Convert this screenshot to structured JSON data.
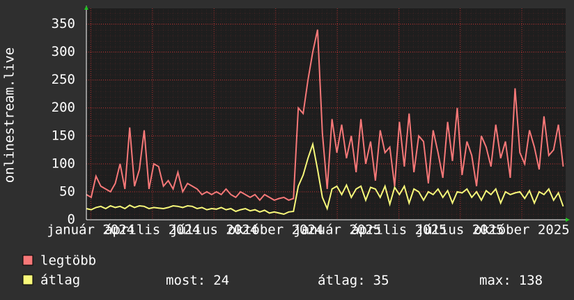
{
  "chart_data": {
    "type": "line",
    "y_label": "onlinestream.live",
    "ylim": [
      0,
      378
    ],
    "yticks": [
      0,
      50,
      100,
      150,
      200,
      250,
      300,
      350
    ],
    "xlim": [
      0,
      99.5
    ],
    "xticks": [
      {
        "value": 0.9,
        "label": "január 2024"
      },
      {
        "value": 13.7,
        "label": "április 2024"
      },
      {
        "value": 26.5,
        "label": "július 2024"
      },
      {
        "value": 39.3,
        "label": "október 2024"
      },
      {
        "value": 52.1,
        "label": "január 2025"
      },
      {
        "value": 64.9,
        "label": "április 2025"
      },
      {
        "value": 77.6,
        "label": "július 2025"
      },
      {
        "value": 90.4,
        "label": "október 2025"
      }
    ],
    "grid": true,
    "series": [
      {
        "name": "legtöbb",
        "color": "#f77878",
        "values": [
          45,
          40,
          78,
          60,
          55,
          50,
          65,
          100,
          55,
          165,
          60,
          90,
          160,
          55,
          100,
          95,
          60,
          70,
          55,
          85,
          50,
          65,
          60,
          55,
          45,
          50,
          45,
          50,
          45,
          55,
          45,
          40,
          50,
          45,
          40,
          45,
          35,
          45,
          40,
          35,
          38,
          40,
          35,
          38,
          200,
          190,
          250,
          300,
          340,
          155,
          55,
          180,
          120,
          170,
          110,
          150,
          85,
          180,
          100,
          140,
          70,
          160,
          120,
          130,
          60,
          175,
          95,
          190,
          85,
          150,
          140,
          65,
          160,
          120,
          75,
          175,
          105,
          200,
          80,
          140,
          115,
          60,
          150,
          130,
          95,
          170,
          110,
          140,
          75,
          235,
          120,
          100,
          160,
          130,
          90,
          185,
          115,
          125,
          170,
          95
        ]
      },
      {
        "name": "átlag",
        "color": "#f8f87a",
        "values": [
          20,
          18,
          22,
          24,
          20,
          25,
          22,
          24,
          20,
          26,
          22,
          25,
          24,
          20,
          22,
          21,
          20,
          22,
          25,
          24,
          22,
          25,
          24,
          20,
          22,
          18,
          20,
          19,
          22,
          18,
          20,
          15,
          18,
          20,
          16,
          18,
          14,
          17,
          12,
          14,
          12,
          10,
          14,
          15,
          60,
          80,
          110,
          135,
          90,
          40,
          20,
          55,
          60,
          45,
          62,
          40,
          55,
          60,
          35,
          58,
          55,
          40,
          60,
          28,
          58,
          45,
          60,
          30,
          55,
          50,
          35,
          50,
          45,
          55,
          40,
          52,
          30,
          50,
          48,
          55,
          40,
          50,
          35,
          52,
          45,
          55,
          30,
          50,
          45,
          48,
          50,
          38,
          52,
          30,
          50,
          45,
          55,
          35,
          48,
          24
        ]
      }
    ],
    "stats": [
      {
        "label": "most:",
        "value": 24
      },
      {
        "label": "átlag:",
        "value": 35
      },
      {
        "label": "max:",
        "value": 138
      }
    ]
  }
}
